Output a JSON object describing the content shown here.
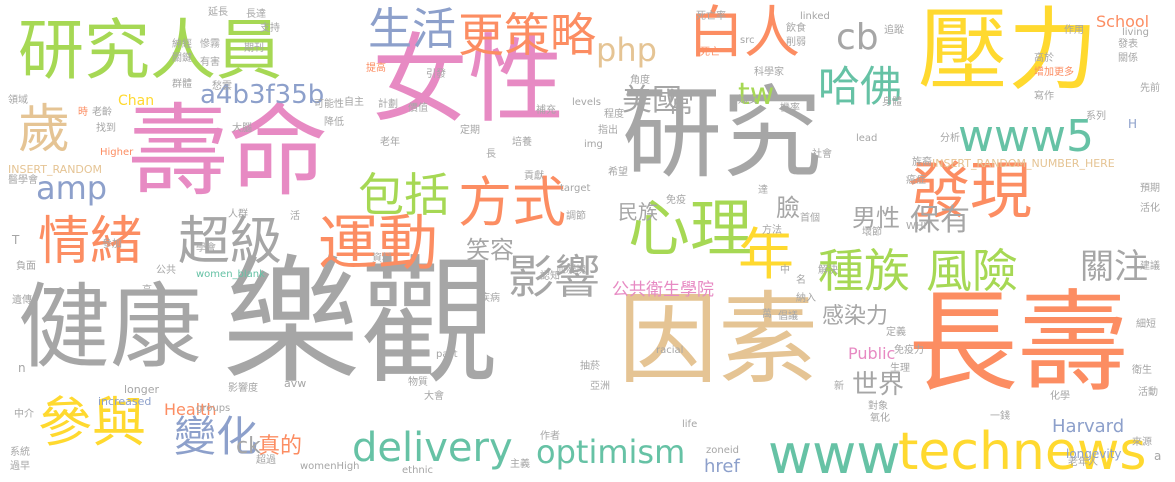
{
  "palette": {
    "gray": "#a6a6a6",
    "pink": "#e78ac3",
    "orange": "#fc8d62",
    "teal": "#66c2a5",
    "blue": "#8da0cb",
    "green": "#a6d854",
    "yellow": "#ffd92f",
    "tan": "#e5c494"
  },
  "words": [
    {
      "text": "研究"
    },
    {
      "text": "健康"
    },
    {
      "text": "樂觀"
    },
    {
      "text": "長壽"
    },
    {
      "text": "女性"
    },
    {
      "text": "壽命"
    },
    {
      "text": "因素"
    },
    {
      "text": "壓力"
    },
    {
      "text": "研究人員"
    },
    {
      "text": "歲"
    },
    {
      "text": "運動"
    },
    {
      "text": "發現"
    },
    {
      "text": "technews"
    },
    {
      "text": "www"
    },
    {
      "text": "www5"
    },
    {
      "text": "參與"
    },
    {
      "text": "心理"
    },
    {
      "text": "年"
    },
    {
      "text": "種族"
    },
    {
      "text": "風險"
    },
    {
      "text": "情緒"
    },
    {
      "text": "超級"
    },
    {
      "text": "方式"
    },
    {
      "text": "delivery"
    },
    {
      "text": "白人"
    },
    {
      "text": "更策略"
    },
    {
      "text": "生活"
    },
    {
      "text": "哈佛"
    },
    {
      "text": "包括"
    },
    {
      "text": "影響"
    },
    {
      "text": "變化"
    },
    {
      "text": "optimism"
    },
    {
      "text": "php"
    },
    {
      "text": "cb"
    },
    {
      "text": "amp"
    },
    {
      "text": "tw"
    },
    {
      "text": "美國"
    },
    {
      "text": "關注"
    },
    {
      "text": "保有"
    },
    {
      "text": "世界"
    },
    {
      "text": "a4b3f35b"
    },
    {
      "text": "笑容"
    },
    {
      "text": "男性"
    },
    {
      "text": "臉"
    },
    {
      "text": "常"
    },
    {
      "text": "感染力"
    },
    {
      "text": "民族"
    },
    {
      "text": "公共衛生學院"
    },
    {
      "text": "Harvard"
    },
    {
      "text": "真的"
    },
    {
      "text": "ck"
    },
    {
      "text": "href"
    },
    {
      "text": "Health"
    },
    {
      "text": "Public"
    },
    {
      "text": "Chan"
    },
    {
      "text": "School"
    },
    {
      "text": "longevity"
    },
    {
      "text": "INSERT_RANDOM_NUMBER_HERE"
    },
    {
      "text": "INSERT_RANDOM"
    },
    {
      "text": "women_blank"
    },
    {
      "text": "increased"
    },
    {
      "text": "longer"
    },
    {
      "text": "groups"
    },
    {
      "text": "avw"
    },
    {
      "text": "racial"
    },
    {
      "text": "zoneid"
    },
    {
      "text": "ethnic"
    },
    {
      "text": "womenHigh"
    },
    {
      "text": "Higher"
    },
    {
      "text": "past"
    },
    {
      "text": "target"
    },
    {
      "text": "levels"
    },
    {
      "text": "img"
    },
    {
      "text": "src"
    },
    {
      "text": "linked"
    },
    {
      "text": "lead"
    },
    {
      "text": "living"
    },
    {
      "text": "life"
    },
    {
      "text": "WHI"
    },
    {
      "text": "H"
    },
    {
      "text": "延長"
    },
    {
      "text": "長達"
    },
    {
      "text": "期刊"
    },
    {
      "text": "紳經"
    },
    {
      "text": "慘霧"
    },
    {
      "text": "有害"
    },
    {
      "text": "愁雲"
    },
    {
      "text": "群體"
    },
    {
      "text": "可能性"
    },
    {
      "text": "老齡"
    },
    {
      "text": "找到"
    },
    {
      "text": "時"
    },
    {
      "text": "領域"
    },
    {
      "text": "醫學會"
    },
    {
      "text": "提高"
    },
    {
      "text": "引發"
    },
    {
      "text": "計劃"
    },
    {
      "text": "價值"
    },
    {
      "text": "老年"
    },
    {
      "text": "定期"
    },
    {
      "text": "培養"
    },
    {
      "text": "補充"
    },
    {
      "text": "指出"
    },
    {
      "text": "程度"
    },
    {
      "text": "角度"
    },
    {
      "text": "死亡"
    },
    {
      "text": "死亡率"
    },
    {
      "text": "飲食"
    },
    {
      "text": "削弱"
    },
    {
      "text": "追蹤"
    },
    {
      "text": "作用"
    },
    {
      "text": "發表"
    },
    {
      "text": "關係"
    },
    {
      "text": "高於"
    },
    {
      "text": "增加更多"
    },
    {
      "text": "科學家"
    },
    {
      "text": "婦女"
    },
    {
      "text": "機率"
    },
    {
      "text": "身體"
    },
    {
      "text": "寫作"
    },
    {
      "text": "系列"
    },
    {
      "text": "先前"
    },
    {
      "text": "分析"
    },
    {
      "text": "社會"
    },
    {
      "text": "族裔"
    },
    {
      "text": "癌症"
    },
    {
      "text": "預期"
    },
    {
      "text": "活化"
    },
    {
      "text": "建議"
    },
    {
      "text": "細短"
    },
    {
      "text": "活動"
    },
    {
      "text": "衛生"
    },
    {
      "text": "免疫力"
    },
    {
      "text": "定義"
    },
    {
      "text": "生理"
    },
    {
      "text": "化學"
    },
    {
      "text": "老年人"
    },
    {
      "text": "來源"
    },
    {
      "text": "氧化"
    },
    {
      "text": "對象"
    },
    {
      "text": "一錢"
    },
    {
      "text": "亞洲"
    },
    {
      "text": "抽菸"
    },
    {
      "text": "大會"
    },
    {
      "text": "作者"
    },
    {
      "text": "主義"
    },
    {
      "text": "物質"
    },
    {
      "text": "影響度"
    },
    {
      "text": "遺傳"
    },
    {
      "text": "公共"
    },
    {
      "text": "負面"
    },
    {
      "text": "學會"
    },
    {
      "text": "參加"
    },
    {
      "text": "活"
    },
    {
      "text": "人群"
    },
    {
      "text": "資料"
    },
    {
      "text": "疾病"
    },
    {
      "text": "血凝塊"
    },
    {
      "text": "認知"
    },
    {
      "text": "調節"
    },
    {
      "text": "降低"
    },
    {
      "text": "自主"
    },
    {
      "text": "大腦"
    },
    {
      "text": "支持"
    },
    {
      "text": "關鍵"
    },
    {
      "text": "系統"
    },
    {
      "text": "過早"
    },
    {
      "text": "中介"
    },
    {
      "text": "超過"
    },
    {
      "text": "免疫"
    },
    {
      "text": "希望"
    },
    {
      "text": "貢獻"
    },
    {
      "text": "達"
    },
    {
      "text": "方法"
    },
    {
      "text": "萬"
    },
    {
      "text": "倡議"
    },
    {
      "text": "納入"
    },
    {
      "text": "名"
    },
    {
      "text": "中"
    },
    {
      "text": "解決"
    },
    {
      "text": "首個"
    },
    {
      "text": "壞節"
    },
    {
      "text": "新"
    },
    {
      "text": "高"
    },
    {
      "text": "長"
    },
    {
      "text": "n"
    },
    {
      "text": "T"
    },
    {
      "text": "a"
    }
  ]
}
